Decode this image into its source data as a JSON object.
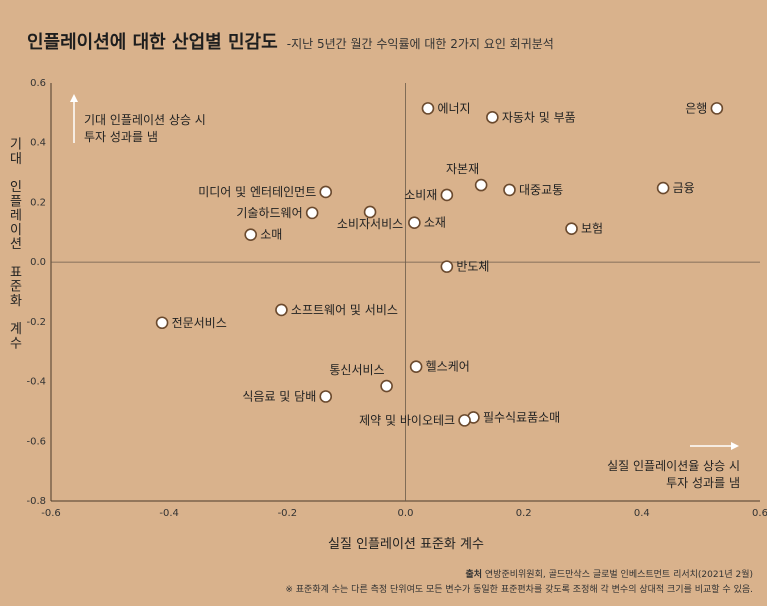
{
  "header": {
    "title": "인플레이션에 대한 산업별 민감도",
    "subtitle": "-지난 5년간 월간 수익률에 대한 2가지 요인 회귀분석"
  },
  "notes": {
    "top_left": [
      "기대 인플레이션 상승 시",
      "투자 성과를 냄"
    ],
    "bottom_right": [
      "실질 인플레이션율 상승 시",
      "투자 성과를 냄"
    ]
  },
  "footer": {
    "source_label": "출처",
    "source_text": "연방준비위원회, 골드만삭스 글로벌 인베스트먼트 리서치(2021년 2월)",
    "note": "※ 표준화계 수는 다른 측정 단위여도 모든 변수가 동일한 표준편차를 갖도록 조정해 각 변수의 상대적 크기를 비교할 수 있음."
  },
  "chart_data": {
    "type": "scatter",
    "title": "인플레이션에 대한 산업별 민감도",
    "xlabel": "실질 인플레이션 표준화 계수",
    "ylabel": "기대 인플레이션 표준화 계수",
    "xlim": [
      -0.6,
      0.6
    ],
    "ylim": [
      -0.8,
      0.6
    ],
    "x_ticks": [
      "-0.6",
      "-0.4",
      "-0.2",
      "0.0",
      "0.2",
      "0.4",
      "0.6"
    ],
    "y_ticks": [
      "0.6",
      "0.4",
      "0.2",
      "0.0",
      "-0.2",
      "-0.4",
      "-0.6",
      "-0.8"
    ],
    "grid": false,
    "colors": {
      "marker_fill": "#ffffff",
      "marker_stroke": "#6b4a2e",
      "axis": "#4a3a2a",
      "zero_line": "#6a5a4a"
    },
    "points": [
      {
        "label": "은행",
        "x": 0.527,
        "y": 0.515
      },
      {
        "label": "에너지",
        "x": 0.038,
        "y": 0.515
      },
      {
        "label": "자동차 및 부품",
        "x": 0.147,
        "y": 0.485
      },
      {
        "label": "자본재",
        "x": 0.128,
        "y": 0.258
      },
      {
        "label": "대중교통",
        "x": 0.176,
        "y": 0.242
      },
      {
        "label": "금융",
        "x": 0.436,
        "y": 0.248
      },
      {
        "label": "소비재",
        "x": 0.07,
        "y": 0.225
      },
      {
        "label": "미디어 및 엔터테인먼트",
        "x": -0.135,
        "y": 0.235
      },
      {
        "label": "기술하드웨어",
        "x": -0.158,
        "y": 0.165
      },
      {
        "label": "소비자서비스",
        "x": -0.06,
        "y": 0.168
      },
      {
        "label": "소재",
        "x": 0.015,
        "y": 0.132
      },
      {
        "label": "보험",
        "x": 0.281,
        "y": 0.112
      },
      {
        "label": "소매",
        "x": -0.262,
        "y": 0.092
      },
      {
        "label": "반도체",
        "x": 0.07,
        "y": -0.015
      },
      {
        "label": "소프트웨어 및 서비스",
        "x": -0.21,
        "y": -0.16
      },
      {
        "label": "전문서비스",
        "x": -0.412,
        "y": -0.203
      },
      {
        "label": "헬스케어",
        "x": 0.018,
        "y": -0.35
      },
      {
        "label": "통신서비스",
        "x": -0.032,
        "y": -0.415
      },
      {
        "label": "식음료 및 담배",
        "x": -0.135,
        "y": -0.45
      },
      {
        "label": "필수식료품소매",
        "x": 0.115,
        "y": -0.52
      },
      {
        "label": "제약 및 바이오테크",
        "x": 0.1,
        "y": -0.53
      }
    ]
  }
}
